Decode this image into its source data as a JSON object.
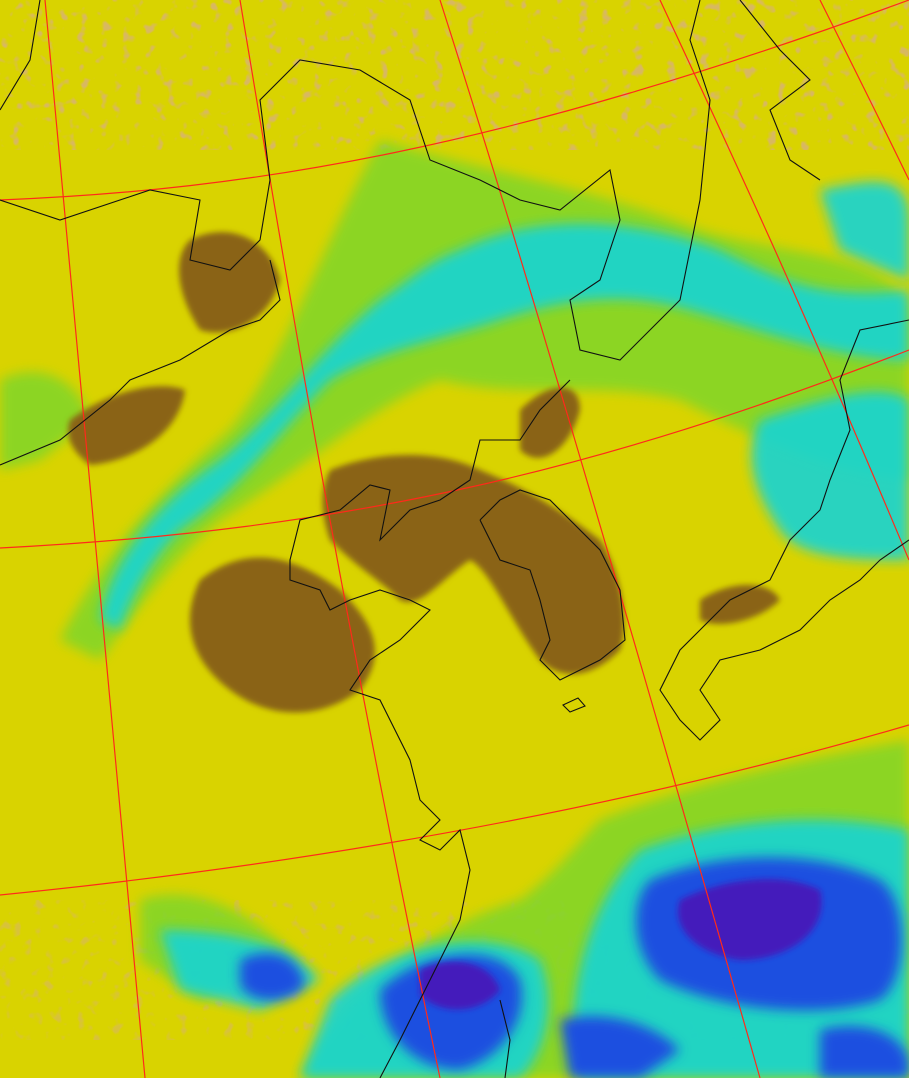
{
  "map": {
    "kind": "satellite false-color imagery",
    "palette": {
      "background": "#d9d300",
      "dry": "#8a6412",
      "speckle": "#b07a20",
      "moist_low": "#7fd62a",
      "moist_mid": "#16d4d4",
      "moist_high": "#1f4fe0",
      "moist_peak": "#4a18b8",
      "graticule": "#ff2a1a",
      "coastline": "#111111"
    },
    "layers": [
      "imagery",
      "graticule",
      "coastlines"
    ]
  }
}
